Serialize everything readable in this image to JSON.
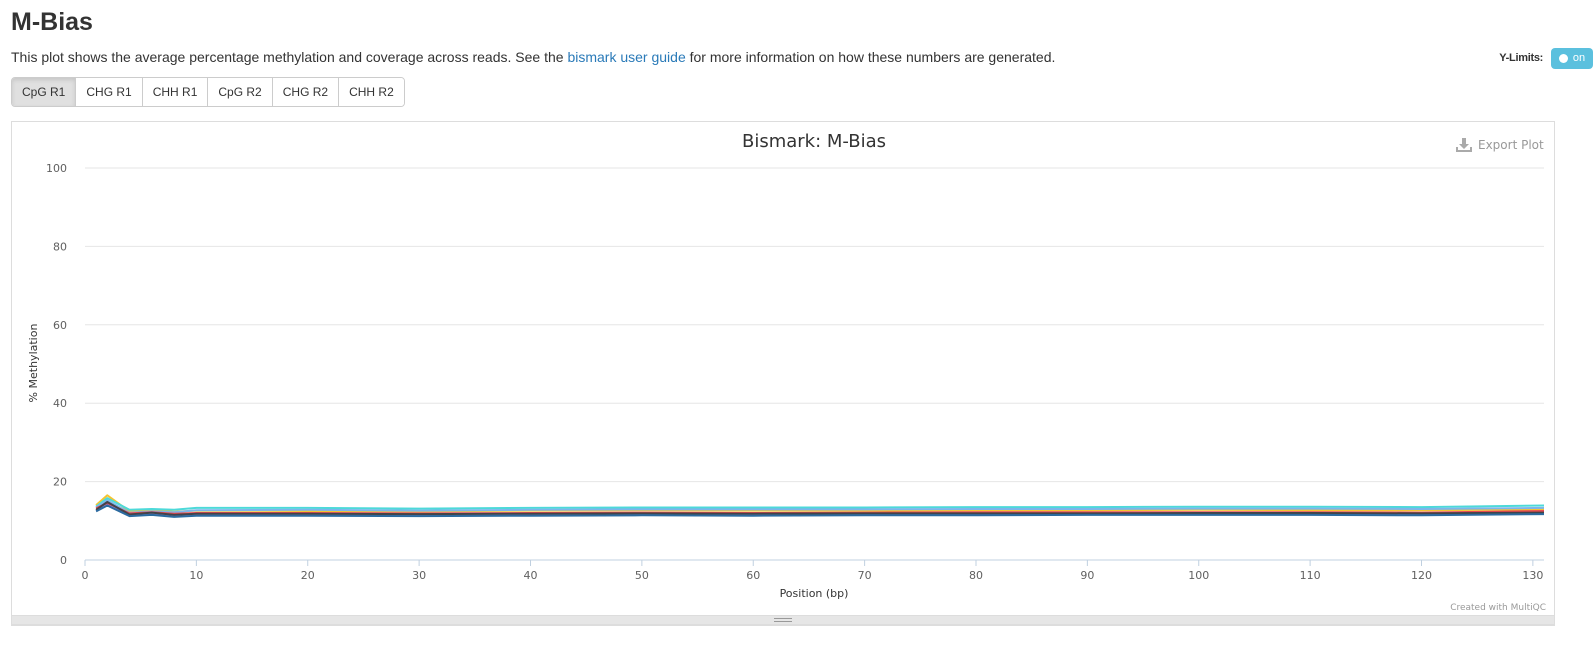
{
  "header": {
    "title": "M-Bias",
    "desc_prefix": "This plot shows the average percentage methylation and coverage across reads. See the ",
    "desc_link": "bismark user guide",
    "desc_suffix": " for more information on how these numbers are generated."
  },
  "controls": {
    "ylimits_label": "Y-Limits:",
    "ylimits_toggle": "on",
    "tabs": [
      "CpG R1",
      "CHG R1",
      "CHH R1",
      "CpG R2",
      "CHG R2",
      "CHH R2"
    ],
    "active_tab": 0
  },
  "plot": {
    "export_label": "Export Plot",
    "credit": "Created with MultiQC"
  },
  "chart_data": {
    "type": "line",
    "title": "Bismark: M-Bias",
    "xlabel": "Position (bp)",
    "ylabel": "% Methylation",
    "xlim": [
      0,
      131
    ],
    "ylim": [
      0,
      100
    ],
    "xticks": [
      0,
      10,
      20,
      30,
      40,
      50,
      60,
      70,
      80,
      90,
      100,
      110,
      120,
      130
    ],
    "yticks": [
      0,
      20,
      40,
      60,
      80,
      100
    ],
    "grid": true,
    "legend": "none",
    "series": [
      {
        "color": "#f4c430",
        "values": [
          {
            "x": 1,
            "y": 14.0
          },
          {
            "x": 2,
            "y": 16.5
          },
          {
            "x": 4,
            "y": 12.4
          },
          {
            "x": 6,
            "y": 12.8
          },
          {
            "x": 8,
            "y": 12.3
          },
          {
            "x": 10,
            "y": 12.6
          },
          {
            "x": 20,
            "y": 12.5
          },
          {
            "x": 30,
            "y": 12.4
          },
          {
            "x": 40,
            "y": 12.6
          },
          {
            "x": 50,
            "y": 12.7
          },
          {
            "x": 60,
            "y": 12.6
          },
          {
            "x": 70,
            "y": 12.6
          },
          {
            "x": 80,
            "y": 12.7
          },
          {
            "x": 90,
            "y": 12.7
          },
          {
            "x": 100,
            "y": 12.8
          },
          {
            "x": 110,
            "y": 12.7
          },
          {
            "x": 120,
            "y": 12.7
          },
          {
            "x": 131,
            "y": 12.9
          }
        ]
      },
      {
        "color": "#4dd9d9",
        "values": [
          {
            "x": 1,
            "y": 13.6
          },
          {
            "x": 2,
            "y": 15.8
          },
          {
            "x": 4,
            "y": 12.8
          },
          {
            "x": 6,
            "y": 13.0
          },
          {
            "x": 8,
            "y": 12.8
          },
          {
            "x": 10,
            "y": 13.3
          },
          {
            "x": 20,
            "y": 13.3
          },
          {
            "x": 30,
            "y": 13.1
          },
          {
            "x": 40,
            "y": 13.3
          },
          {
            "x": 50,
            "y": 13.4
          },
          {
            "x": 60,
            "y": 13.4
          },
          {
            "x": 70,
            "y": 13.4
          },
          {
            "x": 80,
            "y": 13.5
          },
          {
            "x": 90,
            "y": 13.5
          },
          {
            "x": 100,
            "y": 13.6
          },
          {
            "x": 110,
            "y": 13.6
          },
          {
            "x": 120,
            "y": 13.5
          },
          {
            "x": 131,
            "y": 13.9
          }
        ]
      },
      {
        "color": "#7cb5ec",
        "values": [
          {
            "x": 1,
            "y": 13.4
          },
          {
            "x": 2,
            "y": 15.2
          },
          {
            "x": 4,
            "y": 12.1
          },
          {
            "x": 6,
            "y": 12.4
          },
          {
            "x": 8,
            "y": 12.2
          },
          {
            "x": 10,
            "y": 12.7
          },
          {
            "x": 20,
            "y": 12.8
          },
          {
            "x": 30,
            "y": 12.6
          },
          {
            "x": 40,
            "y": 12.8
          },
          {
            "x": 50,
            "y": 12.9
          },
          {
            "x": 60,
            "y": 12.9
          },
          {
            "x": 70,
            "y": 12.9
          },
          {
            "x": 80,
            "y": 13.0
          },
          {
            "x": 90,
            "y": 13.0
          },
          {
            "x": 100,
            "y": 13.1
          },
          {
            "x": 110,
            "y": 13.1
          },
          {
            "x": 120,
            "y": 13.0
          },
          {
            "x": 131,
            "y": 13.3
          }
        ]
      },
      {
        "color": "#e8494f",
        "values": [
          {
            "x": 1,
            "y": 13.2
          },
          {
            "x": 2,
            "y": 14.5
          },
          {
            "x": 4,
            "y": 11.9
          },
          {
            "x": 6,
            "y": 12.2
          },
          {
            "x": 8,
            "y": 11.8
          },
          {
            "x": 10,
            "y": 12.0
          },
          {
            "x": 20,
            "y": 12.0
          },
          {
            "x": 30,
            "y": 11.9
          },
          {
            "x": 40,
            "y": 12.0
          },
          {
            "x": 50,
            "y": 12.1
          },
          {
            "x": 60,
            "y": 12.0
          },
          {
            "x": 70,
            "y": 12.1
          },
          {
            "x": 80,
            "y": 12.2
          },
          {
            "x": 90,
            "y": 12.2
          },
          {
            "x": 100,
            "y": 12.2
          },
          {
            "x": 110,
            "y": 12.2
          },
          {
            "x": 120,
            "y": 12.1
          },
          {
            "x": 131,
            "y": 12.5
          }
        ]
      },
      {
        "color": "#8085e9",
        "values": [
          {
            "x": 1,
            "y": 12.6
          },
          {
            "x": 2,
            "y": 14.0
          },
          {
            "x": 4,
            "y": 11.4
          },
          {
            "x": 6,
            "y": 11.8
          },
          {
            "x": 8,
            "y": 11.2
          },
          {
            "x": 10,
            "y": 11.6
          },
          {
            "x": 20,
            "y": 11.6
          },
          {
            "x": 30,
            "y": 11.5
          },
          {
            "x": 40,
            "y": 11.6
          },
          {
            "x": 50,
            "y": 11.7
          },
          {
            "x": 60,
            "y": 11.6
          },
          {
            "x": 70,
            "y": 11.7
          },
          {
            "x": 80,
            "y": 11.7
          },
          {
            "x": 90,
            "y": 11.7
          },
          {
            "x": 100,
            "y": 11.8
          },
          {
            "x": 110,
            "y": 11.8
          },
          {
            "x": 120,
            "y": 11.7
          },
          {
            "x": 131,
            "y": 11.9
          }
        ]
      },
      {
        "color": "#434348",
        "values": [
          {
            "x": 1,
            "y": 12.8
          },
          {
            "x": 2,
            "y": 14.8
          },
          {
            "x": 4,
            "y": 11.6
          },
          {
            "x": 6,
            "y": 12.1
          },
          {
            "x": 8,
            "y": 11.5
          },
          {
            "x": 10,
            "y": 11.8
          },
          {
            "x": 20,
            "y": 11.8
          },
          {
            "x": 30,
            "y": 11.7
          },
          {
            "x": 40,
            "y": 11.8
          },
          {
            "x": 50,
            "y": 11.9
          },
          {
            "x": 60,
            "y": 11.8
          },
          {
            "x": 70,
            "y": 11.9
          },
          {
            "x": 80,
            "y": 11.9
          },
          {
            "x": 90,
            "y": 11.9
          },
          {
            "x": 100,
            "y": 12.0
          },
          {
            "x": 110,
            "y": 12.0
          },
          {
            "x": 120,
            "y": 11.9
          },
          {
            "x": 131,
            "y": 12.1
          }
        ]
      },
      {
        "color": "#2b6a9f",
        "values": [
          {
            "x": 1,
            "y": 12.4
          },
          {
            "x": 2,
            "y": 13.9
          },
          {
            "x": 4,
            "y": 11.2
          },
          {
            "x": 6,
            "y": 11.5
          },
          {
            "x": 8,
            "y": 11.0
          },
          {
            "x": 10,
            "y": 11.3
          },
          {
            "x": 20,
            "y": 11.3
          },
          {
            "x": 30,
            "y": 11.2
          },
          {
            "x": 40,
            "y": 11.3
          },
          {
            "x": 50,
            "y": 11.4
          },
          {
            "x": 60,
            "y": 11.3
          },
          {
            "x": 70,
            "y": 11.4
          },
          {
            "x": 80,
            "y": 11.4
          },
          {
            "x": 90,
            "y": 11.5
          },
          {
            "x": 100,
            "y": 11.5
          },
          {
            "x": 110,
            "y": 11.5
          },
          {
            "x": 120,
            "y": 11.4
          },
          {
            "x": 131,
            "y": 11.7
          }
        ]
      }
    ]
  }
}
